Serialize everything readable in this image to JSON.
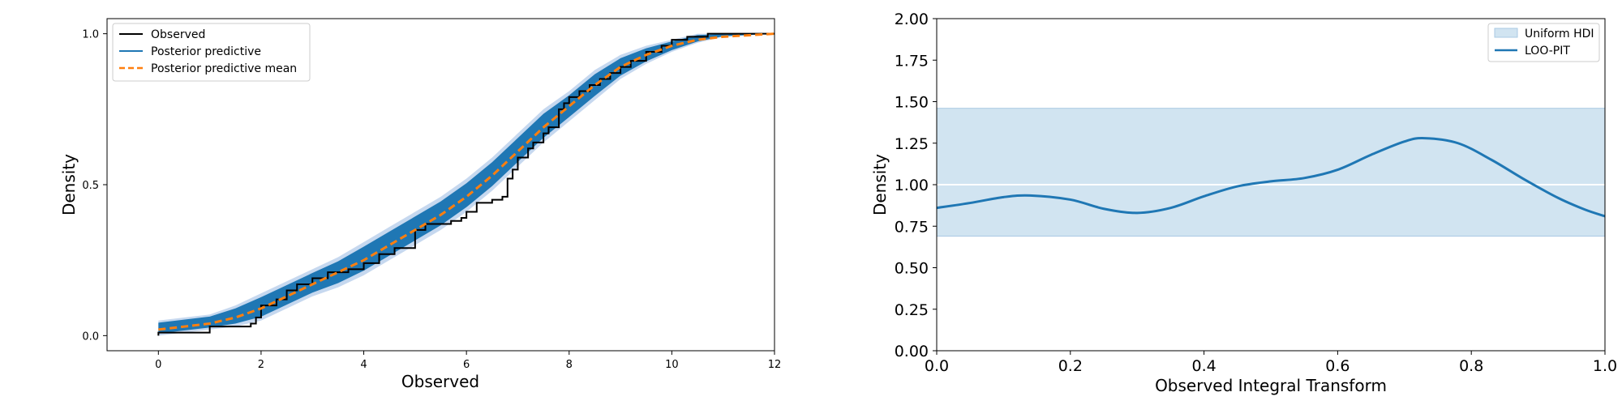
{
  "chart_data": [
    {
      "type": "line",
      "subtype": "ecdf-ppc",
      "title": "",
      "xlabel": "Observed",
      "ylabel": "Density",
      "xlim": [
        -1,
        12
      ],
      "ylim": [
        -0.05,
        1.05
      ],
      "x_ticks": [
        0,
        2,
        4,
        6,
        8,
        10,
        12
      ],
      "x_tick_labels": [
        "0",
        "2",
        "4",
        "6",
        "8",
        "10",
        "12"
      ],
      "y_ticks": [
        0.0,
        0.5,
        1.0
      ],
      "y_tick_labels": [
        "0.0",
        "0.5",
        "1.0"
      ],
      "grid": false,
      "legend_position": "top-left",
      "colors": {
        "observed": "#000000",
        "predictive": "#1f77b4",
        "predictive_band": "#aec7e8",
        "mean": "#ff7f0e"
      },
      "legend": [
        {
          "label": "Observed",
          "style": "solid",
          "color": "#000000"
        },
        {
          "label": "Posterior predictive",
          "style": "solid",
          "color": "#1f77b4"
        },
        {
          "label": "Posterior predictive mean",
          "style": "dashed",
          "color": "#ff7f0e"
        }
      ],
      "series": [
        {
          "name": "Observed",
          "step": true,
          "points": [
            [
              0,
              0.0
            ],
            [
              0,
              0.01
            ],
            [
              1,
              0.01
            ],
            [
              1,
              0.03
            ],
            [
              1.8,
              0.04
            ],
            [
              1.9,
              0.06
            ],
            [
              2.0,
              0.08
            ],
            [
              2.0,
              0.1
            ],
            [
              2.3,
              0.12
            ],
            [
              2.5,
              0.15
            ],
            [
              2.7,
              0.17
            ],
            [
              3.0,
              0.19
            ],
            [
              3.3,
              0.21
            ],
            [
              3.7,
              0.22
            ],
            [
              4.0,
              0.24
            ],
            [
              4.3,
              0.27
            ],
            [
              4.6,
              0.29
            ],
            [
              5.0,
              0.31
            ],
            [
              5.0,
              0.35
            ],
            [
              5.2,
              0.37
            ],
            [
              5.7,
              0.38
            ],
            [
              5.9,
              0.39
            ],
            [
              6.0,
              0.41
            ],
            [
              6.2,
              0.44
            ],
            [
              6.5,
              0.45
            ],
            [
              6.7,
              0.46
            ],
            [
              6.8,
              0.52
            ],
            [
              6.9,
              0.55
            ],
            [
              7.0,
              0.59
            ],
            [
              7.2,
              0.62
            ],
            [
              7.3,
              0.64
            ],
            [
              7.5,
              0.67
            ],
            [
              7.6,
              0.69
            ],
            [
              7.8,
              0.75
            ],
            [
              7.9,
              0.77
            ],
            [
              8.0,
              0.79
            ],
            [
              8.2,
              0.81
            ],
            [
              8.4,
              0.83
            ],
            [
              8.6,
              0.85
            ],
            [
              8.8,
              0.87
            ],
            [
              9.0,
              0.89
            ],
            [
              9.2,
              0.91
            ],
            [
              9.5,
              0.94
            ],
            [
              9.8,
              0.96
            ],
            [
              10.0,
              0.98
            ],
            [
              10.3,
              0.99
            ],
            [
              10.7,
              1.0
            ],
            [
              12,
              1.0
            ]
          ]
        },
        {
          "name": "Posterior predictive mean",
          "step": false,
          "points": [
            [
              0,
              0.02
            ],
            [
              0.5,
              0.03
            ],
            [
              1,
              0.04
            ],
            [
              1.5,
              0.06
            ],
            [
              2.0,
              0.09
            ],
            [
              2.5,
              0.13
            ],
            [
              3.0,
              0.17
            ],
            [
              3.5,
              0.21
            ],
            [
              4.0,
              0.25
            ],
            [
              4.5,
              0.3
            ],
            [
              5.0,
              0.35
            ],
            [
              5.5,
              0.4
            ],
            [
              6.0,
              0.46
            ],
            [
              6.5,
              0.53
            ],
            [
              7.0,
              0.61
            ],
            [
              7.5,
              0.69
            ],
            [
              8.0,
              0.76
            ],
            [
              8.5,
              0.83
            ],
            [
              9.0,
              0.89
            ],
            [
              9.5,
              0.93
            ],
            [
              10.0,
              0.96
            ],
            [
              10.5,
              0.98
            ],
            [
              11.0,
              0.99
            ],
            [
              12,
              1.0
            ]
          ]
        }
      ],
      "predictive_band": {
        "x": [
          0,
          0.5,
          1,
          1.5,
          2.0,
          2.5,
          3.0,
          3.5,
          4.0,
          4.5,
          5.0,
          5.5,
          6.0,
          6.5,
          7.0,
          7.5,
          8.0,
          8.5,
          9.0,
          9.5,
          10.0,
          10.5,
          11.0,
          12
        ],
        "lower": [
          0.0,
          0.01,
          0.02,
          0.03,
          0.05,
          0.09,
          0.13,
          0.16,
          0.2,
          0.25,
          0.3,
          0.35,
          0.41,
          0.48,
          0.56,
          0.64,
          0.71,
          0.78,
          0.85,
          0.9,
          0.94,
          0.97,
          0.99,
          1.0
        ],
        "upper": [
          0.05,
          0.06,
          0.07,
          0.1,
          0.14,
          0.18,
          0.22,
          0.26,
          0.31,
          0.36,
          0.41,
          0.46,
          0.52,
          0.59,
          0.67,
          0.75,
          0.81,
          0.88,
          0.93,
          0.96,
          0.98,
          1.0,
          1.0,
          1.0
        ]
      }
    },
    {
      "type": "line",
      "subtype": "loo-pit",
      "title": "",
      "xlabel": "Observed Integral Transform",
      "ylabel": "Density",
      "xlim": [
        0.0,
        1.0
      ],
      "ylim": [
        0.0,
        2.0
      ],
      "x_ticks": [
        0.0,
        0.2,
        0.4,
        0.6,
        0.8,
        1.0
      ],
      "x_tick_labels": [
        "0.0",
        "0.2",
        "0.4",
        "0.6",
        "0.8",
        "1.0"
      ],
      "y_ticks": [
        0.0,
        0.25,
        0.5,
        0.75,
        1.0,
        1.25,
        1.5,
        1.75,
        2.0
      ],
      "y_tick_labels": [
        "0.00",
        "0.25",
        "0.50",
        "0.75",
        "1.00",
        "1.25",
        "1.50",
        "1.75",
        "2.00"
      ],
      "grid": false,
      "legend_position": "top-right",
      "colors": {
        "hdi_fill": "#d1e4f1",
        "hdi_edge": "#a9c9e3",
        "loo_pit": "#1f77b4",
        "reference": "#ffffff"
      },
      "legend": [
        {
          "label": "Uniform HDI",
          "style": "patch",
          "color": "#d1e4f1"
        },
        {
          "label": "LOO-PIT",
          "style": "solid",
          "color": "#1f77b4"
        }
      ],
      "uniform_hdi": [
        0.69,
        1.46
      ],
      "reference_line": 1.0,
      "series": [
        {
          "name": "LOO-PIT",
          "points": [
            [
              0.0,
              0.86
            ],
            [
              0.05,
              0.89
            ],
            [
              0.1,
              0.925
            ],
            [
              0.14,
              0.935
            ],
            [
              0.2,
              0.91
            ],
            [
              0.25,
              0.855
            ],
            [
              0.3,
              0.83
            ],
            [
              0.35,
              0.86
            ],
            [
              0.4,
              0.93
            ],
            [
              0.45,
              0.99
            ],
            [
              0.5,
              1.02
            ],
            [
              0.55,
              1.04
            ],
            [
              0.6,
              1.09
            ],
            [
              0.65,
              1.18
            ],
            [
              0.7,
              1.26
            ],
            [
              0.73,
              1.28
            ],
            [
              0.78,
              1.25
            ],
            [
              0.83,
              1.15
            ],
            [
              0.88,
              1.03
            ],
            [
              0.93,
              0.92
            ],
            [
              0.97,
              0.85
            ],
            [
              1.0,
              0.81
            ]
          ]
        }
      ]
    }
  ]
}
